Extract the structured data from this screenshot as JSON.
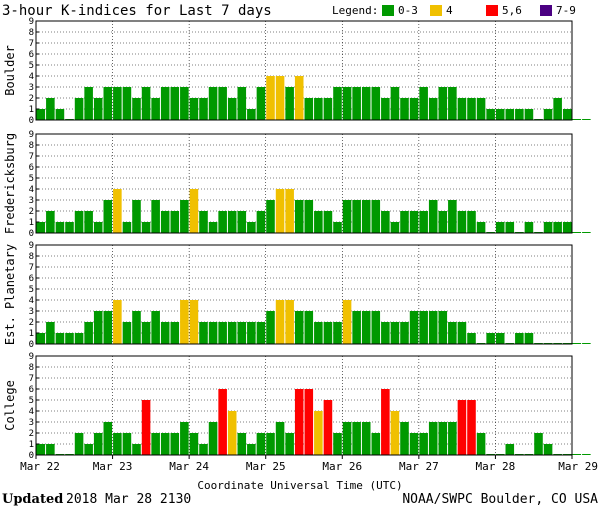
{
  "header": {
    "title": "3-hour K-indices for Last 7 days",
    "legend_label": "Legend:",
    "legend_items": [
      {
        "label": "0-3",
        "color": "#009900"
      },
      {
        "label": "4",
        "color": "#f0c000"
      },
      {
        "label": "5,6",
        "color": "#ff0000"
      },
      {
        "label": "7-9",
        "color": "#4b0082"
      }
    ]
  },
  "footer": {
    "updated_label": "Updated",
    "updated_value": "2018 Mar 28 2130",
    "source": "NOAA/SWPC Boulder, CO USA"
  },
  "chart_data": {
    "type": "bar",
    "title": "3-hour K-indices for Last 7 days",
    "xlabel": "Coordinate Universal Time (UTC)",
    "x_ticks": [
      "Mar 22",
      "Mar 23",
      "Mar 24",
      "Mar 25",
      "Mar 26",
      "Mar 27",
      "Mar 28",
      "Mar 29"
    ],
    "y_ticks": [
      "0",
      "1",
      "2",
      "3",
      "4",
      "5",
      "6",
      "7",
      "8",
      "9"
    ],
    "ylim": [
      0,
      9
    ],
    "bins_per_day": 8,
    "grid": true,
    "series": [
      {
        "name": "Boulder",
        "values": [
          1,
          2,
          1,
          0,
          2,
          3,
          2,
          3,
          3,
          3,
          2,
          3,
          2,
          3,
          3,
          3,
          2,
          2,
          3,
          3,
          2,
          3,
          1,
          3,
          4,
          4,
          3,
          4,
          2,
          2,
          2,
          3,
          3,
          3,
          3,
          3,
          2,
          3,
          2,
          2,
          3,
          2,
          3,
          3,
          2,
          2,
          2,
          1,
          1,
          1,
          1,
          1,
          0,
          1,
          2,
          1,
          0,
          0
        ]
      },
      {
        "name": "Fredericksburg",
        "values": [
          1,
          2,
          1,
          1,
          2,
          2,
          1,
          3,
          4,
          1,
          3,
          1,
          3,
          2,
          2,
          3,
          4,
          2,
          1,
          2,
          2,
          2,
          1,
          2,
          3,
          4,
          4,
          3,
          3,
          2,
          2,
          1,
          3,
          3,
          3,
          3,
          2,
          1,
          2,
          2,
          2,
          3,
          2,
          3,
          2,
          2,
          1,
          0,
          1,
          1,
          0,
          1,
          0,
          1,
          1,
          1,
          0,
          0
        ]
      },
      {
        "name": "Est. Planetary",
        "values": [
          1,
          2,
          1,
          1,
          1,
          2,
          3,
          3,
          4,
          2,
          3,
          2,
          3,
          2,
          2,
          4,
          4,
          2,
          2,
          2,
          2,
          2,
          2,
          2,
          3,
          4,
          4,
          3,
          3,
          2,
          2,
          2,
          4,
          3,
          3,
          3,
          2,
          2,
          2,
          3,
          3,
          3,
          3,
          2,
          2,
          1,
          0,
          1,
          1,
          0,
          1,
          1,
          0,
          0,
          0,
          0,
          0,
          0
        ]
      },
      {
        "name": "College",
        "values": [
          1,
          1,
          0,
          0,
          2,
          1,
          2,
          3,
          2,
          2,
          1,
          5,
          2,
          2,
          2,
          3,
          2,
          1,
          3,
          6,
          4,
          2,
          1,
          2,
          2,
          3,
          2,
          6,
          6,
          4,
          5,
          2,
          3,
          3,
          3,
          2,
          6,
          4,
          3,
          2,
          2,
          3,
          3,
          3,
          5,
          5,
          2,
          0,
          0,
          1,
          0,
          0,
          2,
          1,
          0,
          0,
          0,
          0
        ]
      }
    ]
  }
}
